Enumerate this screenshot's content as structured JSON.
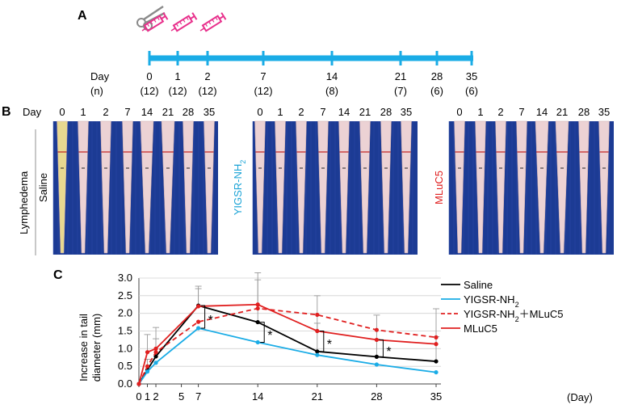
{
  "panel_labels": {
    "a": "A",
    "b": "B",
    "c": "C"
  },
  "timeline": {
    "day_label": "Day",
    "n_label": "(n)",
    "days": [
      "0",
      "1",
      "2",
      "7",
      "14",
      "21",
      "28",
      "35"
    ],
    "counts": [
      "(12)",
      "(12)",
      "(12)",
      "(12)",
      "(8)",
      "(7)",
      "(6)",
      "(6)"
    ],
    "color": "#1aace6",
    "syringe_color": "#e8308c",
    "scissors_color": "#888888"
  },
  "photos": {
    "day_label": "Day",
    "side_label": "Lymphedema",
    "groups": [
      {
        "name": "Saline",
        "color": "#000000",
        "days": [
          "0",
          "1",
          "2",
          "7",
          "14",
          "21",
          "28",
          "35"
        ]
      },
      {
        "name": "YIGSR-NH",
        "sub": "2",
        "color": "#1aa3d6",
        "days": [
          "0",
          "1",
          "2",
          "7",
          "14",
          "21",
          "28",
          "35"
        ]
      },
      {
        "name": "MLuC5",
        "color": "#e02020",
        "days": [
          "0",
          "1",
          "2",
          "7",
          "14",
          "21",
          "28",
          "35"
        ]
      }
    ],
    "background_color": "#1c3b94",
    "tail_color": "#ecd2d4"
  },
  "chart_data": {
    "type": "line",
    "ylabel_line1": "Increase in tail",
    "ylabel_line2": "diameter (mm)",
    "xlabel": "(Day)",
    "ylim": [
      0,
      3
    ],
    "yticks": [
      "0.0",
      "0.5",
      "1.0",
      "1.5",
      "2.0",
      "2.5",
      "3.0"
    ],
    "xlim": [
      0,
      35
    ],
    "xticks": [
      {
        "value": 0,
        "label": "0"
      },
      {
        "value": 1,
        "label": "1"
      },
      {
        "value": 2,
        "label": "2"
      },
      {
        "value": 5,
        "label": "5"
      },
      {
        "value": 7,
        "label": "7"
      },
      {
        "value": 14,
        "label": "14"
      },
      {
        "value": 21,
        "label": "21"
      },
      {
        "value": 28,
        "label": "28"
      },
      {
        "value": 35,
        "label": "35"
      }
    ],
    "series": [
      {
        "name": "Saline",
        "color": "#000000",
        "dashed": false,
        "x": [
          0,
          1,
          2,
          7,
          14,
          21,
          28,
          35
        ],
        "y": [
          0,
          0.4,
          0.78,
          2.22,
          1.75,
          0.92,
          0.77,
          0.64
        ],
        "err": [
          0,
          0.3,
          0.5,
          0.55,
          1.4,
          0.8,
          0.5,
          0.7
        ]
      },
      {
        "name": "YIGSR-NH",
        "sub": "2",
        "color": "#1aace6",
        "dashed": false,
        "x": [
          0,
          1,
          2,
          7,
          14,
          21,
          28,
          35
        ],
        "y": [
          0,
          0.35,
          0.6,
          1.58,
          1.18,
          0.82,
          0.55,
          0.33
        ],
        "err": [
          0,
          0,
          0,
          0,
          0,
          0,
          0,
          0
        ]
      },
      {
        "name": "YIGSR-NH",
        "sub": "2",
        "suffix": "＋MLuC5",
        "color": "#e02020",
        "dashed": true,
        "x": [
          0,
          1,
          2,
          7,
          14,
          21,
          28,
          35
        ],
        "y": [
          0,
          0.5,
          0.9,
          1.76,
          2.14,
          1.96,
          1.53,
          1.32
        ],
        "err": [
          0,
          0,
          0,
          0,
          0,
          0,
          0,
          0
        ]
      },
      {
        "name": "MLuC5",
        "color": "#e02020",
        "dashed": false,
        "x": [
          0,
          1,
          2,
          7,
          14,
          21,
          28,
          35
        ],
        "y": [
          0,
          0.9,
          1.0,
          2.2,
          2.25,
          1.5,
          1.25,
          1.13
        ],
        "err": [
          0,
          0.5,
          0.6,
          0.5,
          0.7,
          1.0,
          0.7,
          1.0
        ]
      }
    ],
    "significance": [
      {
        "x": 7,
        "y_low": 1.58,
        "y_high": 2.22,
        "label": "*"
      },
      {
        "x": 14,
        "y_low": 1.18,
        "y_high": 1.75,
        "label": "*"
      },
      {
        "x": 21,
        "y_low": 0.92,
        "y_high": 1.5,
        "label": "*"
      },
      {
        "x": 28,
        "y_low": 0.77,
        "y_high": 1.25,
        "label": "*"
      }
    ]
  }
}
